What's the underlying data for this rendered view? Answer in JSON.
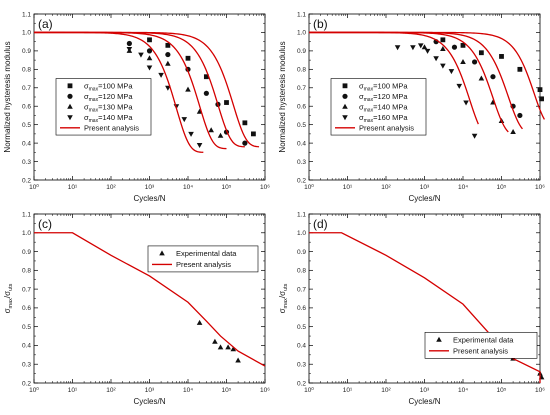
{
  "colors": {
    "curve": "#d40000",
    "marker": "#111111",
    "frame": "#000000"
  },
  "chart_data": [
    {
      "panel": "(a)",
      "type": "scatter",
      "xlabel": "Cycles/N",
      "ylabel": "Normalized hysteresis modulus",
      "xscale": "log",
      "xlim": [
        1,
        1000000
      ],
      "ylim": [
        0.2,
        1.1
      ],
      "xticks": [
        "10⁰",
        "10¹",
        "10²",
        "10³",
        "10⁴",
        "10⁵",
        "10⁶"
      ],
      "yticks": [
        "0.2",
        "0.3",
        "0.4",
        "0.5",
        "0.6",
        "0.7",
        "0.8",
        "0.9",
        "1.0",
        "1.1"
      ],
      "legend_position": "center-left",
      "series": [
        {
          "name": "σmax=100 MPa",
          "label_main": "σ",
          "label_sub": "max",
          "label_rest": "=100 MPa",
          "marker": "square",
          "points": [
            [
              1000,
              0.96
            ],
            [
              3000,
              0.93
            ],
            [
              10000,
              0.86
            ],
            [
              30000,
              0.76
            ],
            [
              100000,
              0.62
            ],
            [
              300000,
              0.51
            ],
            [
              500000,
              0.45
            ]
          ]
        },
        {
          "name": "σmax=120 MPa",
          "label_main": "σ",
          "label_sub": "max",
          "label_rest": "=120 MPa",
          "marker": "circle",
          "points": [
            [
              300,
              0.94
            ],
            [
              1000,
              0.9
            ],
            [
              3000,
              0.88
            ],
            [
              10000,
              0.8
            ],
            [
              30000,
              0.67
            ],
            [
              60000,
              0.61
            ],
            [
              100000,
              0.46
            ],
            [
              300000,
              0.4
            ]
          ]
        },
        {
          "name": "σmax=130 MPa",
          "label_main": "σ",
          "label_sub": "max",
          "label_rest": "=130 MPa",
          "marker": "triangle-up",
          "points": [
            [
              300,
              0.9
            ],
            [
              1000,
              0.86
            ],
            [
              3000,
              0.83
            ],
            [
              10000,
              0.69
            ],
            [
              20000,
              0.57
            ],
            [
              40000,
              0.47
            ],
            [
              70000,
              0.44
            ]
          ]
        },
        {
          "name": "σmax=140 MPa",
          "label_main": "σ",
          "label_sub": "max",
          "label_rest": "=140 MPa",
          "marker": "triangle-down",
          "points": [
            [
              300,
              0.91
            ],
            [
              600,
              0.88
            ],
            [
              1000,
              0.81
            ],
            [
              2000,
              0.77
            ],
            [
              3000,
              0.7
            ],
            [
              5000,
              0.6
            ],
            [
              8000,
              0.53
            ],
            [
              12000,
              0.45
            ],
            [
              20000,
              0.39
            ]
          ]
        },
        {
          "name": "Present analysis",
          "label_main": "Present analysis",
          "marker": "line",
          "curves": [
            {
              "N0": 5000,
              "k": 1.3,
              "ymin": 0.35,
              "xmax": 25000
            },
            {
              "N0": 20000,
              "k": 1.3,
              "ymin": 0.37,
              "xmax": 100000
            },
            {
              "N0": 60000,
              "k": 1.3,
              "ymin": 0.38,
              "xmax": 300000
            },
            {
              "N0": 150000,
              "k": 1.3,
              "ymin": 0.38,
              "xmax": 700000
            }
          ]
        }
      ]
    },
    {
      "panel": "(b)",
      "type": "scatter",
      "xlabel": "Cycles/N",
      "ylabel": "Normalized hysteresis modulus",
      "xscale": "log",
      "xlim": [
        1,
        1000000
      ],
      "ylim": [
        0.2,
        1.1
      ],
      "xticks": [
        "10⁰",
        "10¹",
        "10²",
        "10³",
        "10⁴",
        "10⁵",
        "10⁶"
      ],
      "yticks": [
        "0.2",
        "0.3",
        "0.4",
        "0.5",
        "0.6",
        "0.7",
        "0.8",
        "0.9",
        "1.0",
        "1.1"
      ],
      "legend_position": "center-left",
      "series": [
        {
          "name": "σmax=100 MPa",
          "label_main": "σ",
          "label_sub": "max",
          "label_rest": "=100 MPa",
          "marker": "square",
          "points": [
            [
              3000,
              0.96
            ],
            [
              10000,
              0.93
            ],
            [
              30000,
              0.89
            ],
            [
              100000,
              0.87
            ],
            [
              300000,
              0.8
            ],
            [
              1000000,
              0.69
            ],
            [
              1100000,
              0.64
            ]
          ]
        },
        {
          "name": "σmax=120 MPa",
          "label_main": "σ",
          "label_sub": "max",
          "label_rest": "=120 MPa",
          "marker": "circle",
          "points": [
            [
              2000,
              0.95
            ],
            [
              6000,
              0.92
            ],
            [
              20000,
              0.84
            ],
            [
              60000,
              0.76
            ],
            [
              200000,
              0.6
            ],
            [
              300000,
              0.55
            ]
          ]
        },
        {
          "name": "σmax=140 MPa",
          "label_main": "σ",
          "label_sub": "max",
          "label_rest": "=140 MPa",
          "marker": "triangle-up",
          "points": [
            [
              1000,
              0.92
            ],
            [
              3000,
              0.91
            ],
            [
              10000,
              0.84
            ],
            [
              30000,
              0.75
            ],
            [
              60000,
              0.62
            ],
            [
              100000,
              0.52
            ],
            [
              200000,
              0.46
            ]
          ]
        },
        {
          "name": "σmax=160 MPa",
          "label_main": "σ",
          "label_sub": "max",
          "label_rest": "=160 MPa",
          "marker": "triangle-down",
          "points": [
            [
              200,
              0.92
            ],
            [
              500,
              0.92
            ],
            [
              800,
              0.93
            ],
            [
              1200,
              0.9
            ],
            [
              2000,
              0.86
            ],
            [
              3000,
              0.82
            ],
            [
              5000,
              0.79
            ],
            [
              8000,
              0.71
            ],
            [
              12000,
              0.62
            ],
            [
              20000,
              0.44
            ]
          ]
        },
        {
          "name": "Present analysis",
          "label_main": "Present analysis",
          "marker": "line",
          "curves": [
            {
              "N0": 15000,
              "k": 1.3,
              "ymin": 0.42,
              "xmax": 25000
            },
            {
              "N0": 60000,
              "k": 1.3,
              "ymin": 0.44,
              "xmax": 150000
            },
            {
              "N0": 150000,
              "k": 1.3,
              "ymin": 0.45,
              "xmax": 350000
            },
            {
              "N0": 700000,
              "k": 1.4,
              "ymin": 0.48,
              "xmax": 1300000
            }
          ]
        }
      ]
    },
    {
      "panel": "(c)",
      "type": "scatter",
      "xlabel": "Cycles/N",
      "ylabel_main": "σ",
      "ylabel_sub1": "max",
      "ylabel_mid": "/σ",
      "ylabel_sub2": "uts",
      "xscale": "log",
      "xlim": [
        1,
        1000000
      ],
      "ylim": [
        0.2,
        1.1
      ],
      "xticks": [
        "10⁰",
        "10¹",
        "10²",
        "10³",
        "10⁴",
        "10⁵",
        "10⁶"
      ],
      "yticks": [
        "0.2",
        "0.3",
        "0.4",
        "0.5",
        "0.6",
        "0.7",
        "0.8",
        "0.9",
        "1.0",
        "1.1"
      ],
      "legend_position": "top-right",
      "series": [
        {
          "name": "Experimental data",
          "label_main": "Experimental data",
          "marker": "triangle-up",
          "points": [
            [
              20000,
              0.52
            ],
            [
              50000,
              0.42
            ],
            [
              70000,
              0.39
            ],
            [
              110000,
              0.39
            ],
            [
              150000,
              0.38
            ],
            [
              200000,
              0.32
            ]
          ]
        },
        {
          "name": "Present analysis",
          "label_main": "Present analysis",
          "marker": "line",
          "line": [
            [
              1,
              1.0
            ],
            [
              10,
              1.0
            ],
            [
              100,
              0.88
            ],
            [
              1000,
              0.77
            ],
            [
              10000,
              0.63
            ],
            [
              30000,
              0.53
            ],
            [
              70000,
              0.45
            ],
            [
              200000,
              0.37
            ],
            [
              1000000,
              0.29
            ]
          ]
        }
      ]
    },
    {
      "panel": "(d)",
      "type": "scatter",
      "xlabel": "Cycles/N",
      "ylabel_main": "σ",
      "ylabel_sub1": "max",
      "ylabel_mid": "/σ",
      "ylabel_sub2": "uts",
      "xscale": "log",
      "xlim": [
        1,
        1000000
      ],
      "ylim": [
        0.2,
        1.1
      ],
      "xticks": [
        "10⁰",
        "10¹",
        "10²",
        "10³",
        "10⁴",
        "10⁵",
        "10⁶"
      ],
      "yticks": [
        "0.2",
        "0.3",
        "0.4",
        "0.5",
        "0.6",
        "0.7",
        "0.8",
        "0.9",
        "1.0",
        "1.1"
      ],
      "legend_position": "center-right",
      "series": [
        {
          "name": "Experimental data",
          "label_main": "Experimental data",
          "marker": "triangle-up",
          "points": [
            [
              20000,
              0.45
            ],
            [
              40000,
              0.43
            ],
            [
              60000,
              0.41
            ],
            [
              100000,
              0.38
            ],
            [
              200000,
              0.33
            ],
            [
              1000000,
              0.25
            ],
            [
              1100000,
              0.23
            ]
          ]
        },
        {
          "name": "Present analysis",
          "label_main": "Present analysis",
          "marker": "line",
          "line": [
            [
              1,
              1.0
            ],
            [
              7,
              1.0
            ],
            [
              100,
              0.88
            ],
            [
              1000,
              0.76
            ],
            [
              10000,
              0.62
            ],
            [
              50000,
              0.46
            ],
            [
              200000,
              0.33
            ],
            [
              1000000,
              0.26
            ],
            [
              1000000,
              0.26
            ],
            [
              10000000,
              0.2
            ]
          ]
        }
      ]
    }
  ]
}
